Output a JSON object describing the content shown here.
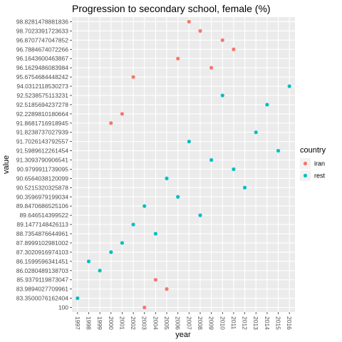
{
  "chart_data": {
    "type": "scatter",
    "title": "Progression to secondary school, female (%)",
    "xlabel": "year",
    "ylabel": "value",
    "y_axis_kind": "categorical",
    "x_ticks": [
      "1997",
      "1998",
      "1999",
      "2000",
      "2001",
      "2002",
      "2003",
      "2004",
      "2005",
      "2006",
      "2007",
      "2008",
      "2009",
      "2010",
      "2011",
      "2012",
      "2013",
      "2014",
      "2015",
      "2016"
    ],
    "y_ticks": [
      "100",
      "83.3500076162404",
      "83.9894027709961",
      "85.9379119873047",
      "86.0280489138703",
      "86.1599596341451",
      "87.3020916974103",
      "87.8999102981002",
      "88.7354876644961",
      "89.1477148426113",
      "89.646514399522",
      "89.8470686525106",
      "90.3596979199034",
      "90.5215320325878",
      "90.6564038120099",
      "90.9799911739095",
      "91.3093790906541",
      "91.5989612261454",
      "91.7026143792557",
      "91.8238737027939",
      "91.8681716918945",
      "92.2289810180664",
      "92.5185694237278",
      "92.5238575113231",
      "94.0312118530273",
      "95.6754684448242",
      "96.1629486083984",
      "96.1643600463867",
      "96.7884674072266",
      "96.8707747047852",
      "98.7023391723633",
      "98.8281478881836"
    ],
    "legend": {
      "title": "country",
      "position": "right",
      "entries": [
        "iran",
        "rest"
      ]
    },
    "colors": {
      "iran": "#f8766d",
      "rest": "#00bfc4"
    },
    "grid": true,
    "series": [
      {
        "name": "iran",
        "points": [
          {
            "x": "2000",
            "y": "91.8681716918945"
          },
          {
            "x": "2001",
            "y": "92.2289810180664"
          },
          {
            "x": "2002",
            "y": "95.6754684448242"
          },
          {
            "x": "2003",
            "y": "100"
          },
          {
            "x": "2004",
            "y": "85.9379119873047"
          },
          {
            "x": "2005",
            "y": "83.9894027709961"
          },
          {
            "x": "2006",
            "y": "96.1643600463867"
          },
          {
            "x": "2007",
            "y": "98.8281478881836"
          },
          {
            "x": "2008",
            "y": "98.7023391723633"
          },
          {
            "x": "2009",
            "y": "96.1629486083984"
          },
          {
            "x": "2010",
            "y": "96.8707747047852"
          },
          {
            "x": "2011",
            "y": "96.7884674072266"
          }
        ]
      },
      {
        "name": "rest",
        "points": [
          {
            "x": "1997",
            "y": "83.3500076162404"
          },
          {
            "x": "1998",
            "y": "86.1599596341451"
          },
          {
            "x": "1999",
            "y": "86.0280489138703"
          },
          {
            "x": "2000",
            "y": "87.3020916974103"
          },
          {
            "x": "2001",
            "y": "87.8999102981002"
          },
          {
            "x": "2002",
            "y": "89.1477148426113"
          },
          {
            "x": "2003",
            "y": "89.8470686525106"
          },
          {
            "x": "2004",
            "y": "88.7354876644961"
          },
          {
            "x": "2005",
            "y": "90.6564038120099"
          },
          {
            "x": "2006",
            "y": "90.3596979199034"
          },
          {
            "x": "2007",
            "y": "91.7026143792557"
          },
          {
            "x": "2008",
            "y": "89.646514399522"
          },
          {
            "x": "2009",
            "y": "91.3093790906541"
          },
          {
            "x": "2010",
            "y": "92.5238575113231"
          },
          {
            "x": "2011",
            "y": "90.9799911739095"
          },
          {
            "x": "2012",
            "y": "90.5215320325878"
          },
          {
            "x": "2013",
            "y": "91.8238737027939"
          },
          {
            "x": "2014",
            "y": "92.5185694237278"
          },
          {
            "x": "2015",
            "y": "91.5989612261454"
          },
          {
            "x": "2016",
            "y": "94.0312118530273"
          }
        ]
      }
    ]
  }
}
